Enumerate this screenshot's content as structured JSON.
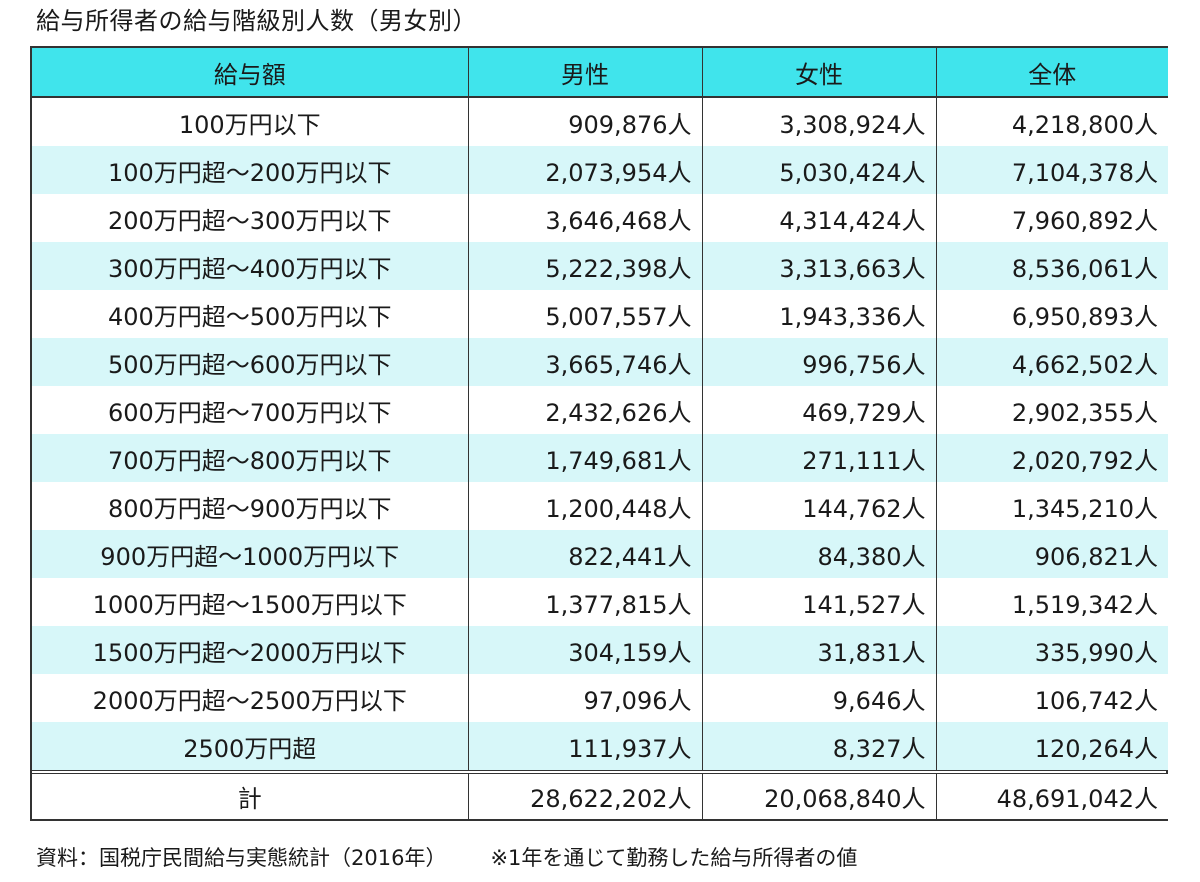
{
  "title": "給与所得者の給与階級別人数（男女別）",
  "headers": [
    "給与額",
    "男性",
    "女性",
    "全体"
  ],
  "rows": [
    {
      "label": "100万円以下",
      "male": "909,876人",
      "female": "3,308,924人",
      "total": "4,218,800人"
    },
    {
      "label": "100万円超～200万円以下",
      "male": "2,073,954人",
      "female": "5,030,424人",
      "total": "7,104,378人"
    },
    {
      "label": "200万円超～300万円以下",
      "male": "3,646,468人",
      "female": "4,314,424人",
      "total": "7,960,892人"
    },
    {
      "label": "300万円超～400万円以下",
      "male": "5,222,398人",
      "female": "3,313,663人",
      "total": "8,536,061人"
    },
    {
      "label": "400万円超～500万円以下",
      "male": "5,007,557人",
      "female": "1,943,336人",
      "total": "6,950,893人"
    },
    {
      "label": "500万円超～600万円以下",
      "male": "3,665,746人",
      "female": "996,756人",
      "total": "4,662,502人"
    },
    {
      "label": "600万円超～700万円以下",
      "male": "2,432,626人",
      "female": "469,729人",
      "total": "2,902,355人"
    },
    {
      "label": "700万円超～800万円以下",
      "male": "1,749,681人",
      "female": "271,111人",
      "total": "2,020,792人"
    },
    {
      "label": "800万円超～900万円以下",
      "male": "1,200,448人",
      "female": "144,762人",
      "total": "1,345,210人"
    },
    {
      "label": "900万円超～1000万円以下",
      "male": "822,441人",
      "female": "84,380人",
      "total": "906,821人"
    },
    {
      "label": "1000万円超～1500万円以下",
      "male": "1,377,815人",
      "female": "141,527人",
      "total": "1,519,342人"
    },
    {
      "label": "1500万円超～2000万円以下",
      "male": "304,159人",
      "female": "31,831人",
      "total": "335,990人"
    },
    {
      "label": "2000万円超～2500万円以下",
      "male": "97,096人",
      "female": "9,646人",
      "total": "106,742人"
    },
    {
      "label": "2500万円超",
      "male": "111,937人",
      "female": "8,327人",
      "total": "120,264人"
    }
  ],
  "totals": {
    "label": "計",
    "male": "28,622,202人",
    "female": "20,068,840人",
    "total": "48,691,042人"
  },
  "source": "資料：国税庁民間給与実態統計（2016年）",
  "note": "※1年を通じて勤務した給与所得者の値",
  "colors": {
    "header_bg": "#40e4ec",
    "stripe_bg": "#d7f7f9",
    "border": "#333333"
  }
}
